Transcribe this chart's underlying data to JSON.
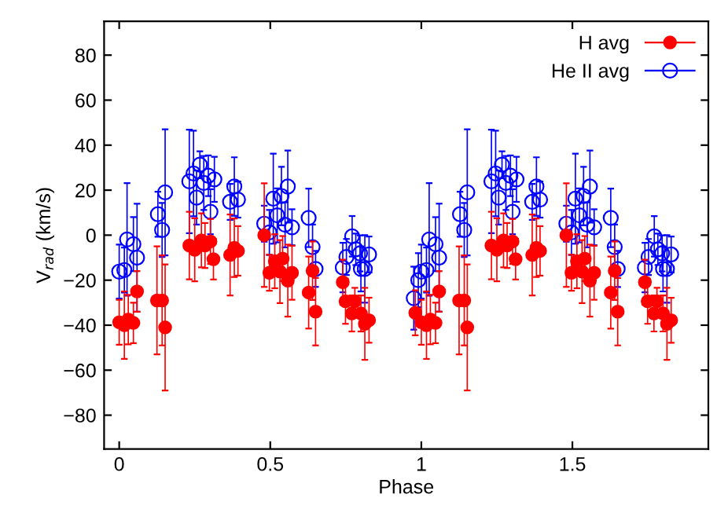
{
  "chart_data": {
    "type": "scatter",
    "xlabel": "Phase",
    "ylabel": "V$_{rad}$ (km/s)",
    "xlim": [
      -0.05,
      1.95
    ],
    "ylim": [
      -95,
      95
    ],
    "xticks": [
      0,
      0.5,
      1,
      1.5
    ],
    "yticks": [
      -80,
      -60,
      -40,
      -20,
      0,
      20,
      40,
      60,
      80
    ],
    "grid": false,
    "legend": "top right",
    "marker": "circle",
    "series": [
      {
        "name": "H avg",
        "color": "#ff0000",
        "x": [
          0.0,
          0.017,
          0.03,
          0.047,
          0.059,
          0.125,
          0.142,
          0.152,
          0.232,
          0.25,
          0.272,
          0.284,
          0.302,
          0.312,
          0.367,
          0.381,
          0.393,
          0.48,
          0.497,
          0.515,
          0.532,
          0.541,
          0.558,
          0.572,
          0.627,
          0.64,
          0.65,
          0.74,
          0.749,
          0.77,
          0.78,
          0.8,
          0.813,
          0.827,
          0.98,
          1.0,
          1.017,
          1.03,
          1.047,
          1.059,
          1.125,
          1.142,
          1.152,
          1.232,
          1.25,
          1.272,
          1.284,
          1.302,
          1.312,
          1.367,
          1.381,
          1.393,
          1.48,
          1.497,
          1.515,
          1.532,
          1.541,
          1.558,
          1.572,
          1.627,
          1.64,
          1.65,
          1.74,
          1.749,
          1.77,
          1.78,
          1.8,
          1.813,
          1.827
        ],
        "values": [
          -38.7,
          -40,
          -37.5,
          -39,
          -25,
          -29,
          -29,
          -41,
          -4.6,
          -6.5,
          -2.3,
          -4.6,
          -2.8,
          -10.7,
          -8.8,
          -5.6,
          -7,
          0,
          -16.7,
          -11.6,
          -16.2,
          -10.4,
          -20.2,
          -16.7,
          -25.5,
          -15.8,
          -34,
          -20.9,
          -29.4,
          -34.8,
          -29.4,
          -34.8,
          -39.4,
          -37.8,
          -34.5,
          -38.7,
          -40,
          -37.5,
          -39,
          -25,
          -29,
          -29,
          -41,
          -4.6,
          -6.5,
          -2.3,
          -4.6,
          -2.8,
          -10.7,
          -8.8,
          -5.6,
          -7,
          0,
          -16.7,
          -11.6,
          -16.2,
          -10.4,
          -20.2,
          -16.7,
          -25.5,
          -15.8,
          -34,
          -20.9,
          -29.4,
          -34.8,
          -29.4,
          -34.8,
          -39.4,
          -37.8
        ],
        "errors": [
          10,
          15,
          11,
          9,
          9,
          24,
          20,
          28,
          15,
          14,
          12,
          10,
          10,
          9,
          18,
          13,
          11,
          23,
          8,
          12,
          14,
          10,
          16,
          12,
          16,
          13,
          15,
          10,
          10,
          8,
          6,
          8,
          16,
          10,
          10,
          10,
          15,
          11,
          9,
          9,
          24,
          20,
          28,
          15,
          14,
          12,
          10,
          10,
          9,
          18,
          13,
          11,
          23,
          8,
          12,
          14,
          10,
          16,
          12,
          16,
          13,
          15,
          10,
          10,
          8,
          6,
          8,
          16,
          10
        ]
      },
      {
        "name": "He II avg",
        "color": "#0000ff",
        "x": [
          0,
          0.017,
          0.026,
          0.047,
          0.059,
          0.128,
          0.142,
          0.152,
          0.232,
          0.246,
          0.256,
          0.267,
          0.28,
          0.295,
          0.302,
          0.315,
          0.367,
          0.381,
          0.393,
          0.48,
          0.497,
          0.51,
          0.523,
          0.537,
          0.549,
          0.558,
          0.572,
          0.627,
          0.64,
          0.65,
          0.74,
          0.752,
          0.771,
          0.783,
          0.797,
          0.8,
          0.813,
          0.827,
          0.975,
          0.99,
          1.0,
          1.017,
          1.026,
          1.047,
          1.059,
          1.128,
          1.142,
          1.152,
          1.232,
          1.246,
          1.256,
          1.267,
          1.28,
          1.295,
          1.302,
          1.315,
          1.367,
          1.381,
          1.393,
          1.48,
          1.497,
          1.51,
          1.523,
          1.537,
          1.549,
          1.558,
          1.572,
          1.627,
          1.64,
          1.65,
          1.74,
          1.752,
          1.771,
          1.783,
          1.797,
          1.8,
          1.813,
          1.827
        ],
        "values": [
          -16.2,
          -15.5,
          -1.9,
          -4,
          -10,
          9.3,
          2.3,
          19,
          23.9,
          27.4,
          16.7,
          31.3,
          23.2,
          26.4,
          10.4,
          24.8,
          14.8,
          21.6,
          15.8,
          5.1,
          1.2,
          16.2,
          8.8,
          17.4,
          4.6,
          21.6,
          3.5,
          7.7,
          -5.3,
          -15,
          -14.4,
          -9.7,
          -0.5,
          -6.3,
          -8.1,
          -15,
          -15,
          -8.6,
          -28,
          -20,
          -16.2,
          -15.5,
          -1.9,
          -4,
          -10,
          9.3,
          2.3,
          19,
          23.9,
          27.4,
          16.7,
          31.3,
          23.2,
          26.4,
          10.4,
          24.8,
          14.8,
          21.6,
          15.8,
          5.1,
          1.2,
          16.2,
          8.8,
          17.4,
          4.6,
          21.6,
          3.5,
          7.7,
          -5.3,
          -15,
          -14.4,
          -9.7,
          -0.5,
          -6.3,
          -8.1,
          -15,
          -15,
          -8.6
        ],
        "errors": [
          12,
          10,
          25,
          12,
          24,
          10,
          12,
          28,
          23,
          19,
          12,
          6,
          12,
          9,
          10,
          10,
          8,
          13,
          8,
          8,
          10,
          20,
          12,
          13,
          10,
          16,
          8,
          13,
          10,
          8,
          11,
          8,
          9,
          7,
          8,
          10,
          15,
          8,
          14,
          12,
          12,
          10,
          25,
          12,
          24,
          10,
          12,
          28,
          23,
          19,
          12,
          6,
          12,
          9,
          10,
          10,
          8,
          13,
          8,
          8,
          10,
          20,
          12,
          13,
          10,
          16,
          8,
          13,
          10,
          8,
          11,
          8,
          9,
          7,
          8,
          10,
          15,
          8
        ]
      }
    ]
  }
}
